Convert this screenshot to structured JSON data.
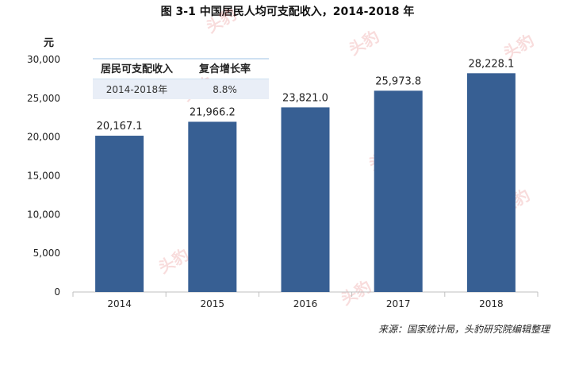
{
  "title": "图  3-1 中国居民人均可支配收入，2014-2018 年",
  "source": "来源：国家统计局，头豹研究院编辑整理",
  "watermark": "头豹",
  "colors": {
    "bar": "#375f93",
    "axis": "#bfbfbf",
    "table_header_line": "#9dc3e6",
    "table_row_bg": "#e9eef7"
  },
  "table": {
    "headers": [
      "居民可支配收入",
      "复合增长率"
    ],
    "rows": [
      [
        "2014-2018年",
        "8.8%"
      ]
    ]
  },
  "chart_data": {
    "type": "bar",
    "ylabel": "元",
    "ylim": [
      0,
      30000
    ],
    "yticks": [
      0,
      5000,
      10000,
      15000,
      20000,
      25000,
      30000
    ],
    "ytick_labels": [
      "0",
      "5,000",
      "10,000",
      "15,000",
      "20,000",
      "25,000",
      "30,000"
    ],
    "categories": [
      "2014",
      "2015",
      "2016",
      "2017",
      "2018"
    ],
    "values": [
      20167.1,
      21966.2,
      23821.0,
      25973.8,
      28228.1
    ],
    "value_labels": [
      "20,167.1",
      "21,966.2",
      "23,821.0",
      "25,973.8",
      "28,228.1"
    ],
    "grid": false
  }
}
